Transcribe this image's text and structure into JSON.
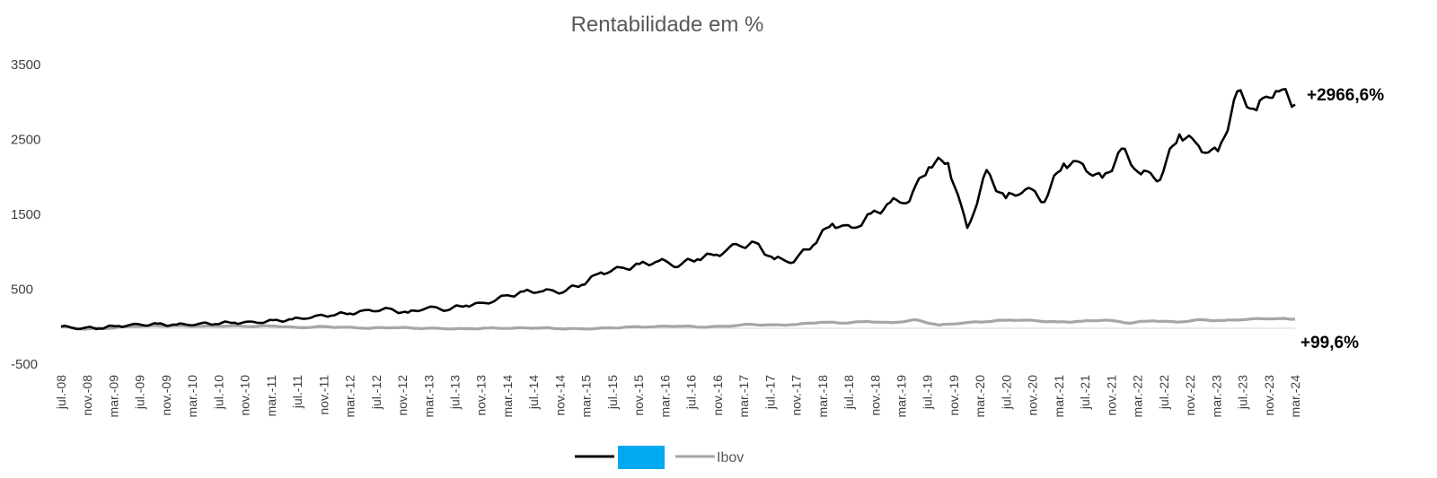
{
  "chart_data": {
    "type": "line",
    "title": "Rentabilidade em %",
    "xlabel": "",
    "ylabel": "",
    "ylim": [
      -500,
      3500
    ],
    "yticks": [
      -500,
      500,
      1500,
      2500,
      3500
    ],
    "x_tick_labels": [
      "jul.-08",
      "nov.-08",
      "mar.-09",
      "jul.-09",
      "nov.-09",
      "mar.-10",
      "jul.-10",
      "nov.-10",
      "mar.-11",
      "jul.-11",
      "nov.-11",
      "mar.-12",
      "jul.-12",
      "nov.-12",
      "mar.-13",
      "jul.-13",
      "nov.-13",
      "mar.-14",
      "jul.-14",
      "nov.-14",
      "mar.-15",
      "jul.-15",
      "nov.-15",
      "mar.-16",
      "jul.-16",
      "nov.-16",
      "mar.-17",
      "jul.-17",
      "nov.-17",
      "mar.-18",
      "jul.-18",
      "nov.-18",
      "mar.-19",
      "jul.-19",
      "nov.-19",
      "mar.-20",
      "jul.-20",
      "nov.-20",
      "mar.-21",
      "jul.-21",
      "nov.-21",
      "mar.-22",
      "jul.-22",
      "nov.-22",
      "mar.-23",
      "jul.-23",
      "nov.-23",
      "mar.-24"
    ],
    "grid": false,
    "legend_position": "bottom",
    "series": [
      {
        "name": "",
        "color": "#000000",
        "values": [
          0,
          -20,
          -15,
          10,
          25,
          30,
          25,
          35,
          45,
          55,
          55,
          75,
          95,
          130,
          160,
          180,
          215,
          230,
          180,
          260,
          230,
          290,
          310,
          400,
          460,
          480,
          470,
          570,
          720,
          770,
          820,
          880,
          820,
          920,
          960,
          1080,
          1100,
          900,
          880,
          1110,
          1380,
          1300,
          1480,
          1650,
          1700,
          2170,
          2200,
          1300,
          2050,
          1700,
          1850,
          1700,
          2200,
          2150,
          1950,
          2350,
          2050,
          2000,
          2600,
          2400,
          2300,
          3100,
          2900,
          3200,
          2966.6
        ],
        "end_label": "+2966,6%"
      },
      {
        "name": "Ibov",
        "color": "#a6a6a6",
        "values": [
          0,
          -30,
          -20,
          5,
          10,
          10,
          5,
          10,
          5,
          10,
          -15,
          0,
          -10,
          -20,
          -10,
          -20,
          -25,
          -30,
          -20,
          -20,
          -15,
          -25,
          -30,
          -20,
          -5,
          0,
          10,
          -5,
          5,
          30,
          20,
          30,
          60,
          50,
          70,
          50,
          90,
          20,
          50,
          70,
          90,
          80,
          60,
          70,
          90,
          50,
          80,
          60,
          90,
          80,
          100,
          110,
          99.6
        ],
        "end_label": "+99,6%"
      }
    ]
  },
  "legend": {
    "ibov_label": "Ibov",
    "highlight_color": "#00a9f0"
  }
}
